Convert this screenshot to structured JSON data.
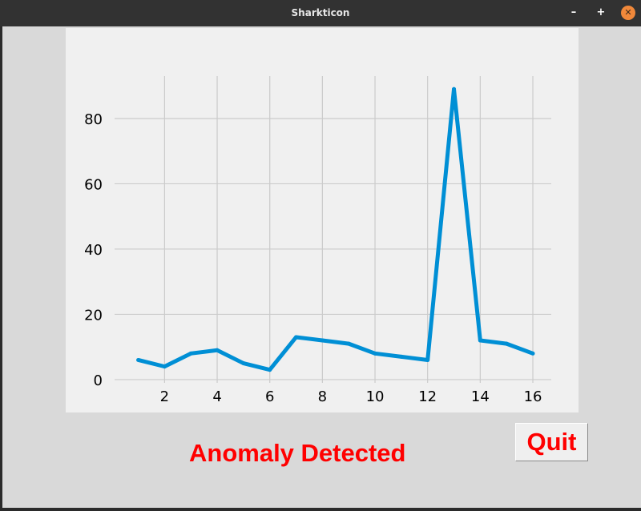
{
  "window": {
    "title": "Sharkticon",
    "minimize_glyph": "–",
    "maximize_glyph": "+",
    "close_glyph": "✕"
  },
  "status": {
    "text": "Anomaly Detected",
    "color": "#ff0000"
  },
  "quit_button": {
    "label": "Quit"
  },
  "chart_data": {
    "type": "line",
    "title": "",
    "xlabel": "",
    "ylabel": "",
    "x": [
      1,
      2,
      3,
      4,
      5,
      6,
      7,
      8,
      9,
      10,
      11,
      12,
      13,
      14,
      15,
      16
    ],
    "series": [
      {
        "values": [
          6,
          4,
          8,
          9,
          5,
          3,
          13,
          12,
          11,
          8,
          7,
          6,
          89,
          12,
          11,
          8
        ],
        "color": "#008fd5"
      }
    ],
    "xlim": [
      0.1,
      16.7
    ],
    "ylim": [
      -1,
      93
    ],
    "xticks": [
      2,
      4,
      6,
      8,
      10,
      12,
      14,
      16
    ],
    "yticks": [
      0,
      20,
      40,
      60,
      80
    ],
    "grid": true
  }
}
